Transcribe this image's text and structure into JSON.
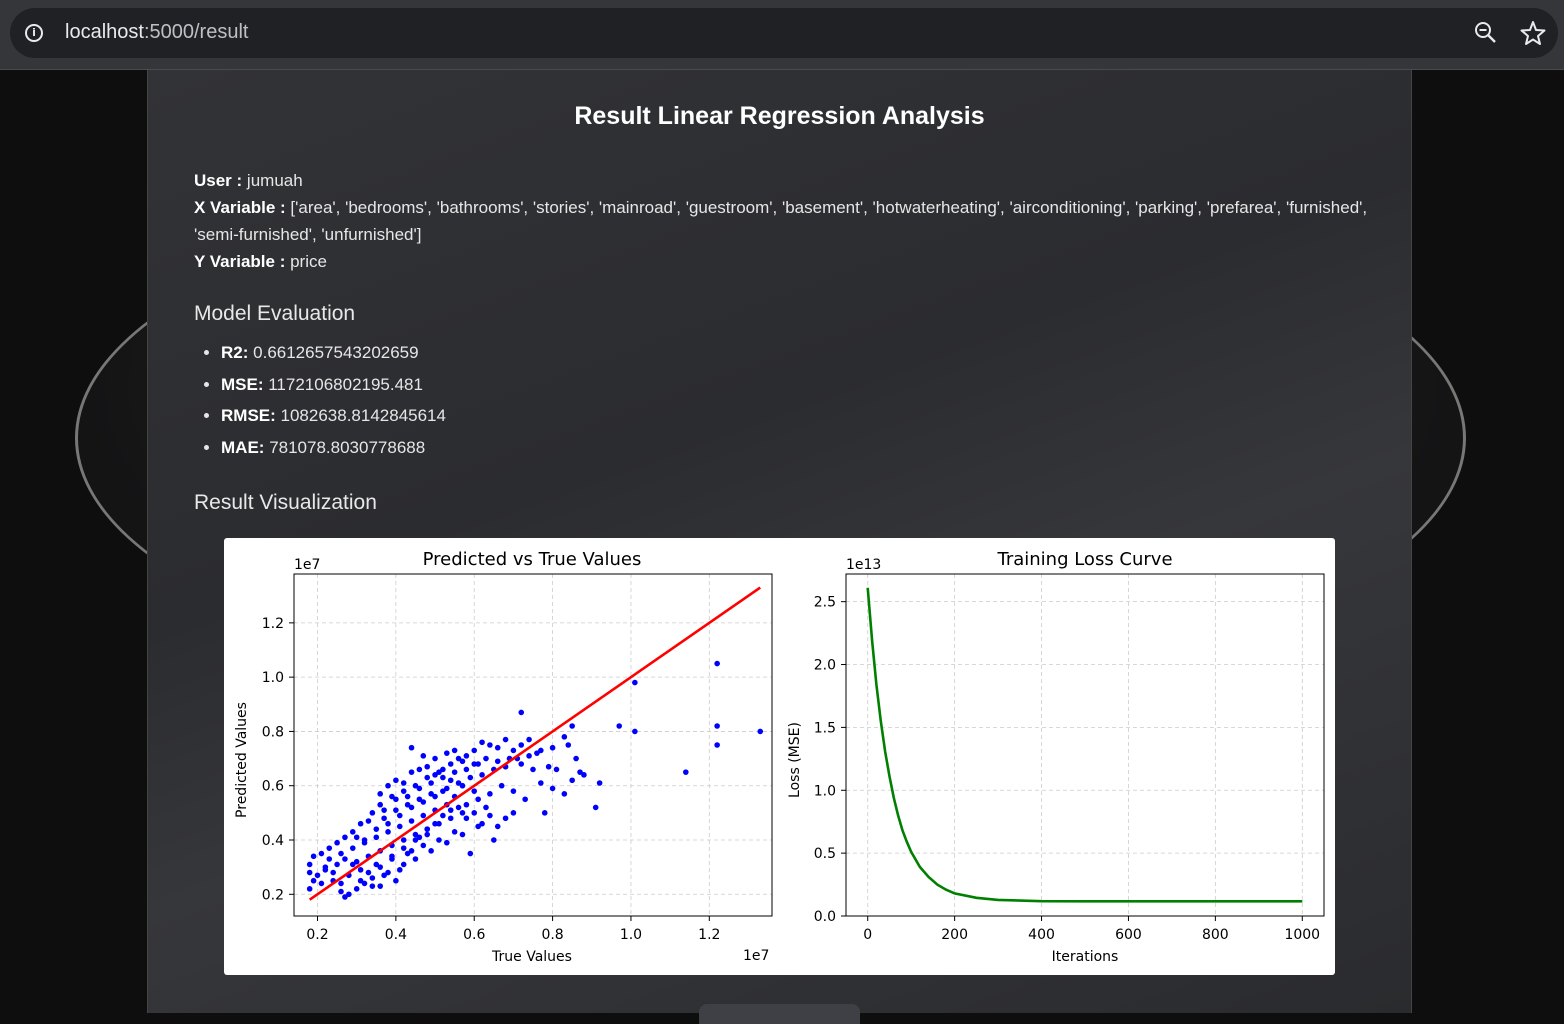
{
  "browser": {
    "url_host": "localhost",
    "url_path": ":5000/result"
  },
  "page": {
    "title": "Result Linear Regression Analysis",
    "user_label": "User :",
    "user_value": "jumuah",
    "x_label": "X Variable :",
    "x_value": "['area', 'bedrooms', 'bathrooms', 'stories', 'mainroad', 'guestroom', 'basement', 'hotwaterheating', 'airconditioning', 'parking', 'prefarea', 'furnished', 'semi-furnished', 'unfurnished']",
    "y_label": "Y Variable :",
    "y_value": "price",
    "eval_heading": "Model Evaluation",
    "metrics": [
      {
        "name": "R2:",
        "value": "0.6612657543202659"
      },
      {
        "name": "MSE:",
        "value": "1172106802195.481"
      },
      {
        "name": "RMSE:",
        "value": "1082638.8142845614"
      },
      {
        "name": "MAE:",
        "value": "781078.8030778688"
      }
    ],
    "viz_heading": "Result Visualization"
  },
  "chart_data": [
    {
      "type": "scatter",
      "title": "Predicted vs True Values",
      "xlabel": "True Values",
      "ylabel": "Predicted Values",
      "x_scale_label": "1e7",
      "y_scale_label": "1e7",
      "xlim": [
        0.14,
        1.36
      ],
      "ylim": [
        0.12,
        1.38
      ],
      "xticks": [
        "0.2",
        "0.4",
        "0.6",
        "0.8",
        "1.0",
        "1.2"
      ],
      "yticks": [
        "0.2",
        "0.4",
        "0.6",
        "0.8",
        "1.0",
        "1.2"
      ],
      "grid": true,
      "point_color": "#0000ff",
      "line_color": "#ff0000",
      "reference_line": [
        [
          0.18,
          0.18
        ],
        [
          1.33,
          1.33
        ]
      ],
      "points": [
        [
          1.22,
          1.05
        ],
        [
          1.01,
          0.98
        ],
        [
          1.33,
          0.8
        ],
        [
          1.22,
          0.82
        ],
        [
          1.22,
          0.75
        ],
        [
          0.97,
          0.82
        ],
        [
          1.01,
          0.8
        ],
        [
          1.14,
          0.65
        ],
        [
          0.92,
          0.61
        ],
        [
          0.91,
          0.52
        ],
        [
          0.72,
          0.87
        ],
        [
          0.85,
          0.82
        ],
        [
          0.84,
          0.75
        ],
        [
          0.86,
          0.7
        ],
        [
          0.87,
          0.65
        ],
        [
          0.88,
          0.64
        ],
        [
          0.85,
          0.62
        ],
        [
          0.81,
          0.66
        ],
        [
          0.79,
          0.67
        ],
        [
          0.76,
          0.72
        ],
        [
          0.74,
          0.77
        ],
        [
          0.72,
          0.75
        ],
        [
          0.7,
          0.73
        ],
        [
          0.68,
          0.77
        ],
        [
          0.66,
          0.74
        ],
        [
          0.64,
          0.75
        ],
        [
          0.62,
          0.76
        ],
        [
          0.6,
          0.73
        ],
        [
          0.58,
          0.71
        ],
        [
          0.56,
          0.7
        ],
        [
          0.54,
          0.68
        ],
        [
          0.52,
          0.66
        ],
        [
          0.5,
          0.64
        ],
        [
          0.48,
          0.67
        ],
        [
          0.46,
          0.66
        ],
        [
          0.44,
          0.65
        ],
        [
          0.42,
          0.61
        ],
        [
          0.4,
          0.62
        ],
        [
          0.38,
          0.6
        ],
        [
          0.36,
          0.57
        ],
        [
          0.44,
          0.74
        ],
        [
          0.47,
          0.71
        ],
        [
          0.5,
          0.7
        ],
        [
          0.53,
          0.72
        ],
        [
          0.55,
          0.73
        ],
        [
          0.57,
          0.69
        ],
        [
          0.6,
          0.68
        ],
        [
          0.63,
          0.7
        ],
        [
          0.66,
          0.69
        ],
        [
          0.69,
          0.7
        ],
        [
          0.72,
          0.68
        ],
        [
          0.75,
          0.66
        ],
        [
          0.77,
          0.61
        ],
        [
          0.8,
          0.59
        ],
        [
          0.83,
          0.57
        ],
        [
          0.78,
          0.5
        ],
        [
          0.73,
          0.55
        ],
        [
          0.7,
          0.58
        ],
        [
          0.67,
          0.6
        ],
        [
          0.64,
          0.57
        ],
        [
          0.61,
          0.55
        ],
        [
          0.58,
          0.53
        ],
        [
          0.55,
          0.56
        ],
        [
          0.52,
          0.58
        ],
        [
          0.49,
          0.57
        ],
        [
          0.46,
          0.55
        ],
        [
          0.43,
          0.53
        ],
        [
          0.4,
          0.55
        ],
        [
          0.37,
          0.51
        ],
        [
          0.34,
          0.5
        ],
        [
          0.31,
          0.46
        ],
        [
          0.29,
          0.43
        ],
        [
          0.27,
          0.41
        ],
        [
          0.25,
          0.39
        ],
        [
          0.23,
          0.37
        ],
        [
          0.21,
          0.35
        ],
        [
          0.19,
          0.34
        ],
        [
          0.18,
          0.31
        ],
        [
          0.18,
          0.28
        ],
        [
          0.19,
          0.25
        ],
        [
          0.18,
          0.22
        ],
        [
          0.2,
          0.27
        ],
        [
          0.22,
          0.29
        ],
        [
          0.24,
          0.25
        ],
        [
          0.26,
          0.24
        ],
        [
          0.27,
          0.19
        ],
        [
          0.28,
          0.2
        ],
        [
          0.3,
          0.22
        ],
        [
          0.32,
          0.24
        ],
        [
          0.34,
          0.26
        ],
        [
          0.36,
          0.23
        ],
        [
          0.38,
          0.28
        ],
        [
          0.4,
          0.25
        ],
        [
          0.42,
          0.31
        ],
        [
          0.44,
          0.36
        ],
        [
          0.46,
          0.41
        ],
        [
          0.48,
          0.44
        ],
        [
          0.5,
          0.46
        ],
        [
          0.52,
          0.49
        ],
        [
          0.54,
          0.51
        ],
        [
          0.56,
          0.52
        ],
        [
          0.58,
          0.48
        ],
        [
          0.6,
          0.5
        ],
        [
          0.62,
          0.46
        ],
        [
          0.64,
          0.49
        ],
        [
          0.66,
          0.45
        ],
        [
          0.68,
          0.48
        ],
        [
          0.7,
          0.5
        ],
        [
          0.65,
          0.4
        ],
        [
          0.59,
          0.35
        ],
        [
          0.55,
          0.43
        ],
        [
          0.51,
          0.4
        ],
        [
          0.47,
          0.38
        ],
        [
          0.43,
          0.35
        ],
        [
          0.39,
          0.33
        ],
        [
          0.35,
          0.31
        ],
        [
          0.31,
          0.29
        ],
        [
          0.28,
          0.27
        ],
        [
          0.25,
          0.31
        ],
        [
          0.23,
          0.33
        ],
        [
          0.26,
          0.35
        ],
        [
          0.29,
          0.37
        ],
        [
          0.32,
          0.39
        ],
        [
          0.35,
          0.41
        ],
        [
          0.38,
          0.43
        ],
        [
          0.41,
          0.45
        ],
        [
          0.44,
          0.47
        ],
        [
          0.47,
          0.49
        ],
        [
          0.5,
          0.51
        ],
        [
          0.53,
          0.53
        ],
        [
          0.3,
          0.32
        ],
        [
          0.33,
          0.34
        ],
        [
          0.36,
          0.36
        ],
        [
          0.39,
          0.38
        ],
        [
          0.42,
          0.4
        ],
        [
          0.45,
          0.42
        ],
        [
          0.48,
          0.44
        ],
        [
          0.51,
          0.46
        ],
        [
          0.54,
          0.48
        ],
        [
          0.57,
          0.5
        ],
        [
          0.32,
          0.4
        ],
        [
          0.35,
          0.44
        ],
        [
          0.38,
          0.46
        ],
        [
          0.41,
          0.49
        ],
        [
          0.44,
          0.52
        ],
        [
          0.47,
          0.54
        ],
        [
          0.5,
          0.56
        ],
        [
          0.53,
          0.59
        ],
        [
          0.56,
          0.61
        ],
        [
          0.59,
          0.63
        ],
        [
          0.62,
          0.64
        ],
        [
          0.65,
          0.66
        ],
        [
          0.68,
          0.67
        ],
        [
          0.71,
          0.7
        ],
        [
          0.74,
          0.71
        ],
        [
          0.77,
          0.73
        ],
        [
          0.8,
          0.74
        ],
        [
          0.83,
          0.78
        ],
        [
          0.37,
          0.48
        ],
        [
          0.4,
          0.51
        ],
        [
          0.43,
          0.56
        ],
        [
          0.46,
          0.59
        ],
        [
          0.49,
          0.61
        ],
        [
          0.52,
          0.63
        ],
        [
          0.55,
          0.65
        ],
        [
          0.58,
          0.66
        ],
        [
          0.61,
          0.68
        ],
        [
          0.33,
          0.28
        ],
        [
          0.36,
          0.3
        ],
        [
          0.39,
          0.34
        ],
        [
          0.42,
          0.37
        ],
        [
          0.45,
          0.4
        ],
        [
          0.48,
          0.42
        ],
        [
          0.29,
          0.31
        ],
        [
          0.27,
          0.33
        ],
        [
          0.24,
          0.28
        ],
        [
          0.22,
          0.3
        ],
        [
          0.21,
          0.24
        ],
        [
          0.26,
          0.21
        ],
        [
          0.31,
          0.25
        ],
        [
          0.34,
          0.23
        ],
        [
          0.37,
          0.27
        ],
        [
          0.41,
          0.29
        ],
        [
          0.45,
          0.33
        ],
        [
          0.49,
          0.36
        ],
        [
          0.53,
          0.39
        ],
        [
          0.57,
          0.42
        ],
        [
          0.61,
          0.45
        ],
        [
          0.63,
          0.52
        ],
        [
          0.6,
          0.58
        ],
        [
          0.57,
          0.6
        ],
        [
          0.54,
          0.62
        ],
        [
          0.51,
          0.65
        ],
        [
          0.48,
          0.63
        ],
        [
          0.45,
          0.6
        ],
        [
          0.42,
          0.58
        ],
        [
          0.39,
          0.56
        ],
        [
          0.36,
          0.53
        ],
        [
          0.33,
          0.47
        ],
        [
          0.3,
          0.41
        ]
      ]
    },
    {
      "type": "line",
      "title": "Training Loss Curve",
      "xlabel": "Iterations",
      "ylabel": "Loss (MSE)",
      "y_scale_label": "1e13",
      "xlim": [
        -50,
        1050
      ],
      "ylim": [
        0,
        2.72
      ],
      "xticks": [
        "0",
        "200",
        "400",
        "600",
        "800",
        "1000"
      ],
      "yticks": [
        "0.0",
        "0.5",
        "1.0",
        "1.5",
        "2.0",
        "2.5"
      ],
      "grid": true,
      "line_color": "#008000",
      "series": [
        {
          "x": [
            0,
            10,
            20,
            30,
            40,
            50,
            60,
            70,
            80,
            90,
            100,
            120,
            140,
            160,
            180,
            200,
            250,
            300,
            400,
            500,
            600,
            700,
            800,
            900,
            1000
          ],
          "y": [
            2.61,
            2.19,
            1.84,
            1.55,
            1.31,
            1.11,
            0.94,
            0.8,
            0.68,
            0.59,
            0.51,
            0.39,
            0.31,
            0.25,
            0.21,
            0.18,
            0.145,
            0.128,
            0.118,
            0.117,
            0.117,
            0.117,
            0.117,
            0.117,
            0.117
          ]
        }
      ]
    }
  ]
}
